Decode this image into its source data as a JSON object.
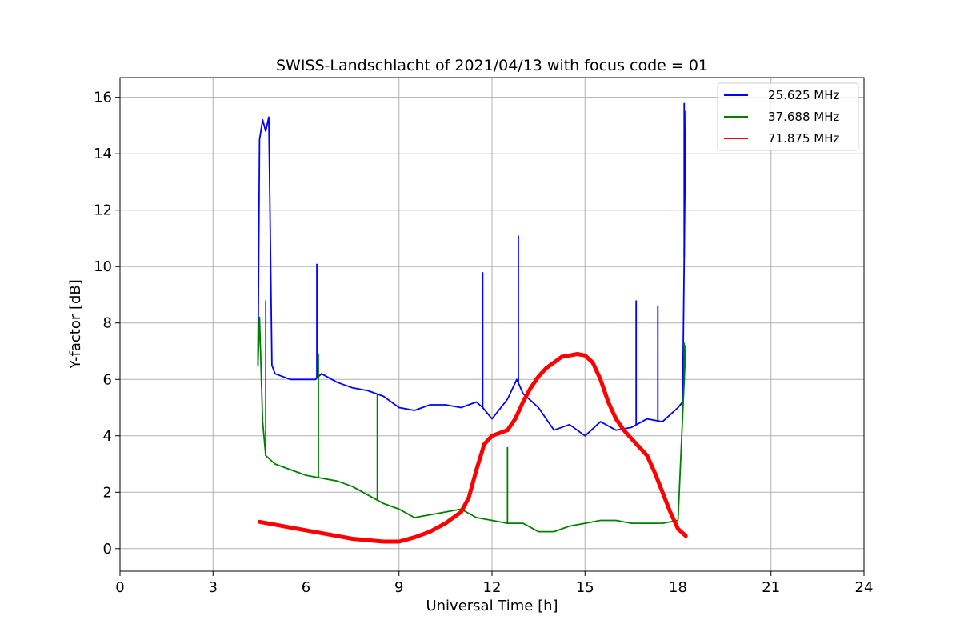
{
  "chart_data": {
    "type": "line",
    "title": "SWISS-Landschlacht of 2021/04/13 with focus code = 01",
    "xlabel": "Universal Time [h]",
    "ylabel": "Y-factor [dB]",
    "xlim": [
      0,
      24
    ],
    "ylim": [
      -0.8,
      16.7
    ],
    "xticks": [
      0,
      3,
      6,
      9,
      12,
      15,
      18,
      21,
      24
    ],
    "yticks": [
      0,
      2,
      4,
      6,
      8,
      10,
      12,
      14,
      16
    ],
    "grid": true,
    "legend_position": "top-right",
    "series": [
      {
        "name": "25.625 MHz",
        "color": "#0000ff",
        "x": [
          4.45,
          4.5,
          4.6,
          4.7,
          4.8,
          4.9,
          5.0,
          5.5,
          6.0,
          6.3,
          6.5,
          7.0,
          7.5,
          8.0,
          8.5,
          9.0,
          9.5,
          10.0,
          10.5,
          11.0,
          11.5,
          11.7,
          12.0,
          12.5,
          12.8,
          13.0,
          13.5,
          14.0,
          14.5,
          15.0,
          15.5,
          16.0,
          16.5,
          17.0,
          17.5,
          18.0,
          18.15,
          18.25
        ],
        "y": [
          6.5,
          14.5,
          15.2,
          14.8,
          15.3,
          6.5,
          6.2,
          6.0,
          6.0,
          6.0,
          6.2,
          5.9,
          5.7,
          5.6,
          5.4,
          5.0,
          4.9,
          5.1,
          5.1,
          5.0,
          5.2,
          5.0,
          4.6,
          5.3,
          6.0,
          5.5,
          5.0,
          4.2,
          4.4,
          4.0,
          4.5,
          4.2,
          4.3,
          4.6,
          4.5,
          5.0,
          5.2,
          15.5
        ],
        "notable_spikes": [
          {
            "x": 6.35,
            "y": 10.1
          },
          {
            "x": 11.7,
            "y": 9.8
          },
          {
            "x": 12.85,
            "y": 11.1
          },
          {
            "x": 16.65,
            "y": 8.8
          },
          {
            "x": 17.35,
            "y": 8.6
          },
          {
            "x": 18.2,
            "y": 15.8
          }
        ]
      },
      {
        "name": "37.688 MHz",
        "color": "#008000",
        "x": [
          4.45,
          4.5,
          4.6,
          4.7,
          5.0,
          5.5,
          6.0,
          6.5,
          7.0,
          7.5,
          8.0,
          8.5,
          9.0,
          9.5,
          10.0,
          10.5,
          11.0,
          11.5,
          12.0,
          12.5,
          13.0,
          13.5,
          14.0,
          14.5,
          15.0,
          15.5,
          16.0,
          16.5,
          17.0,
          17.5,
          18.0,
          18.25
        ],
        "y": [
          6.5,
          8.2,
          4.5,
          3.3,
          3.0,
          2.8,
          2.6,
          2.5,
          2.4,
          2.2,
          1.9,
          1.6,
          1.4,
          1.1,
          1.2,
          1.3,
          1.4,
          1.1,
          1.0,
          0.9,
          0.9,
          0.6,
          0.6,
          0.8,
          0.9,
          1.0,
          1.0,
          0.9,
          0.9,
          0.9,
          1.0,
          7.2
        ],
        "notable_spikes": [
          {
            "x": 4.7,
            "y": 8.8
          },
          {
            "x": 6.4,
            "y": 6.9
          },
          {
            "x": 8.3,
            "y": 5.5
          },
          {
            "x": 12.5,
            "y": 3.6
          },
          {
            "x": 18.2,
            "y": 7.3
          }
        ]
      },
      {
        "name": "71.875 MHz",
        "color": "#ff0000",
        "x": [
          4.5,
          5.0,
          5.5,
          6.0,
          6.5,
          7.0,
          7.5,
          8.0,
          8.5,
          9.0,
          9.5,
          10.0,
          10.5,
          11.0,
          11.25,
          11.5,
          11.75,
          12.0,
          12.25,
          12.5,
          12.75,
          13.0,
          13.25,
          13.5,
          13.75,
          14.0,
          14.25,
          14.5,
          14.75,
          15.0,
          15.25,
          15.5,
          15.75,
          16.0,
          16.25,
          16.5,
          16.75,
          17.0,
          17.25,
          17.5,
          17.75,
          18.0,
          18.25
        ],
        "y": [
          0.95,
          0.85,
          0.75,
          0.65,
          0.55,
          0.45,
          0.35,
          0.3,
          0.25,
          0.25,
          0.4,
          0.6,
          0.9,
          1.3,
          1.8,
          2.8,
          3.7,
          4.0,
          4.1,
          4.2,
          4.6,
          5.2,
          5.7,
          6.1,
          6.4,
          6.6,
          6.8,
          6.85,
          6.9,
          6.85,
          6.6,
          6.0,
          5.2,
          4.6,
          4.2,
          3.9,
          3.6,
          3.3,
          2.7,
          2.0,
          1.3,
          0.7,
          0.45
        ]
      }
    ]
  }
}
